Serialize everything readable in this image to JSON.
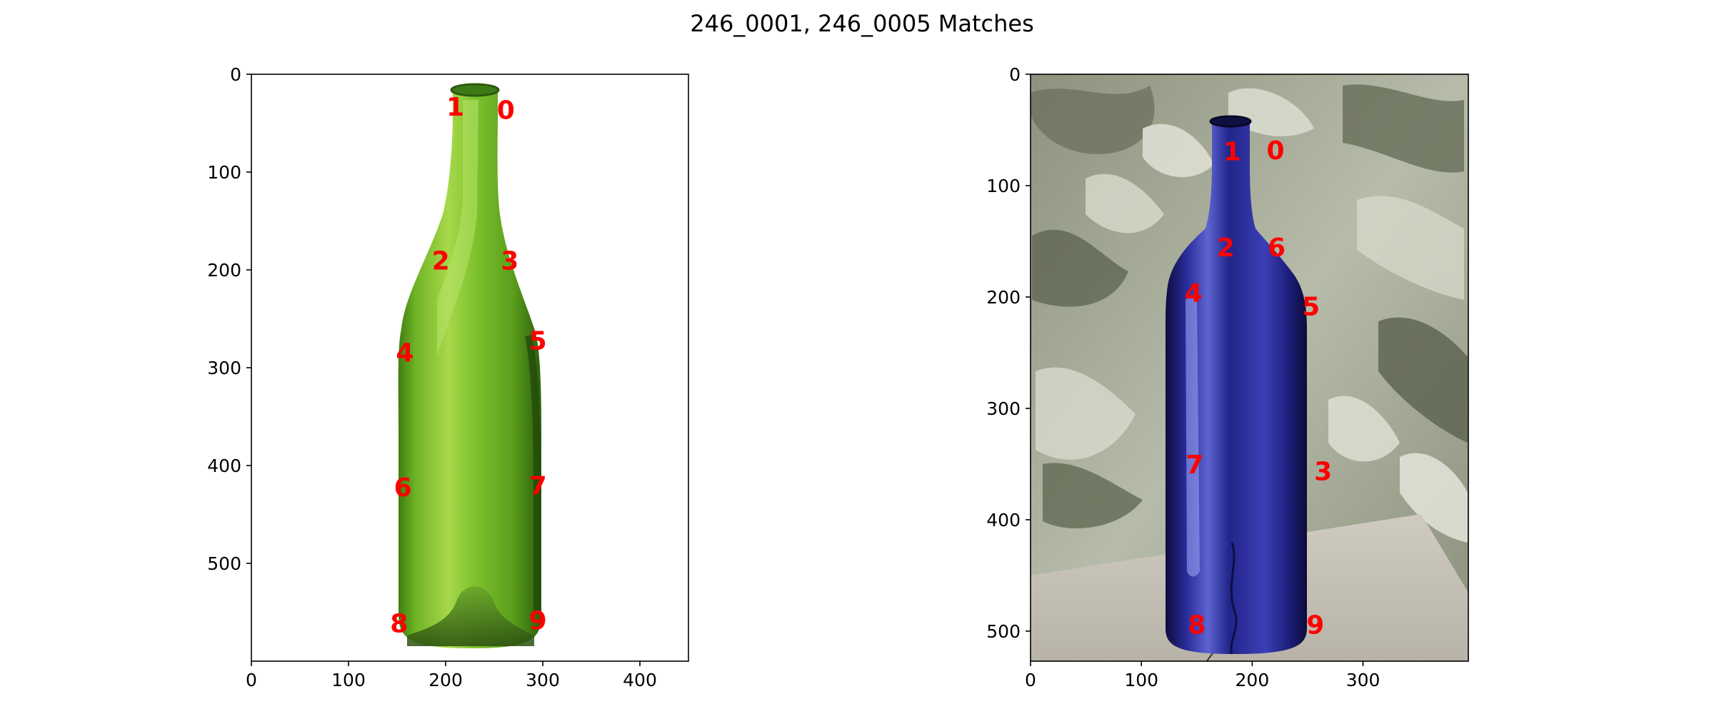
{
  "figure": {
    "title": "246_0001, 246_0005 Matches"
  },
  "chart_data": [
    {
      "type": "scatter",
      "title": "",
      "xlabel": "",
      "ylabel": "",
      "xlim": [
        0,
        450
      ],
      "ylim": [
        600,
        0
      ],
      "xticks": [
        0,
        100,
        200,
        300,
        400
      ],
      "yticks": [
        0,
        100,
        200,
        300,
        400,
        500
      ],
      "grid": false,
      "image_description": "green glass wine bottle on white background",
      "colors": {
        "background": "#ffffff",
        "bottle_light": "#8ccd32",
        "bottle_mid": "#5aa01e",
        "bottle_dark": "#2f6a10",
        "labels": "#ff0000"
      },
      "keypoints": [
        {
          "label": "0",
          "x": 262,
          "y": 36
        },
        {
          "label": "1",
          "x": 210,
          "y": 33
        },
        {
          "label": "2",
          "x": 195,
          "y": 190
        },
        {
          "label": "3",
          "x": 266,
          "y": 190
        },
        {
          "label": "4",
          "x": 158,
          "y": 284
        },
        {
          "label": "5",
          "x": 295,
          "y": 272
        },
        {
          "label": "6",
          "x": 156,
          "y": 422
        },
        {
          "label": "7",
          "x": 295,
          "y": 420
        },
        {
          "label": "8",
          "x": 152,
          "y": 561
        },
        {
          "label": "9",
          "x": 295,
          "y": 558
        }
      ]
    },
    {
      "type": "scatter",
      "title": "",
      "xlabel": "",
      "ylabel": "",
      "xlim": [
        0,
        395
      ],
      "ylim": [
        527,
        0
      ],
      "xticks": [
        0,
        100,
        200,
        300
      ],
      "yticks": [
        0,
        100,
        200,
        300,
        400,
        500
      ],
      "grid": false,
      "image_description": "blue glass wine bottle on a table against a grey marbled wall",
      "colors": {
        "wall_light": "#c9ccbd",
        "wall_dark": "#6e7560",
        "table": "#c5c1b6",
        "bottle_light": "#3a3fae",
        "bottle_mid": "#1f2085",
        "bottle_dark": "#0f0f45",
        "labels": "#ff0000"
      },
      "keypoints": [
        {
          "label": "0",
          "x": 221,
          "y": 68
        },
        {
          "label": "1",
          "x": 182,
          "y": 69
        },
        {
          "label": "2",
          "x": 176,
          "y": 155
        },
        {
          "label": "6",
          "x": 222,
          "y": 155
        },
        {
          "label": "4",
          "x": 147,
          "y": 196
        },
        {
          "label": "5",
          "x": 253,
          "y": 208
        },
        {
          "label": "7",
          "x": 148,
          "y": 350
        },
        {
          "label": "3",
          "x": 264,
          "y": 356
        },
        {
          "label": "8",
          "x": 150,
          "y": 494
        },
        {
          "label": "9",
          "x": 257,
          "y": 494
        }
      ]
    }
  ]
}
